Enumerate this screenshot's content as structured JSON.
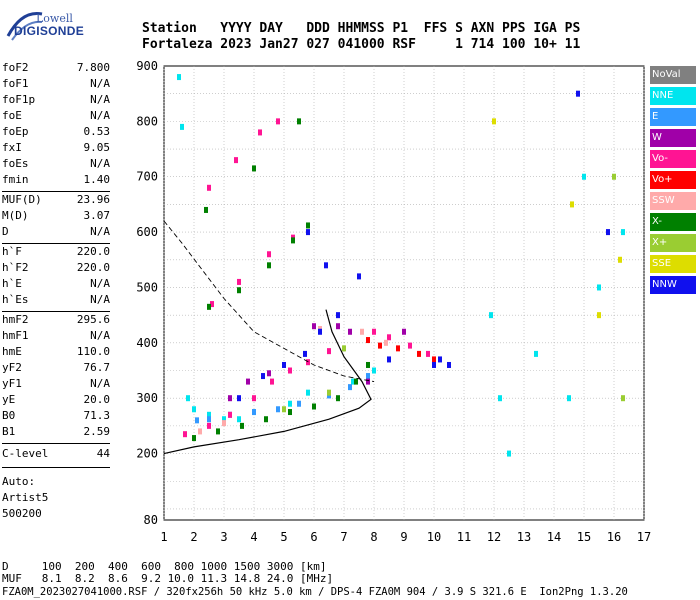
{
  "logo": {
    "line1": "Lowell",
    "line2": "DIGISONDE"
  },
  "header": {
    "line1": "Station   YYYY DAY   DDD HHMMSS P1  FFS S AXN PPS IGA PS",
    "line2": "Fortaleza 2023 Jan27 027 041000 RSF     1 714 100 10+ 11"
  },
  "params": {
    "group1": [
      {
        "k": "foF2",
        "v": "7.800"
      },
      {
        "k": "foF1",
        "v": "N/A"
      },
      {
        "k": "foF1p",
        "v": "N/A"
      },
      {
        "k": "foE",
        "v": "N/A"
      },
      {
        "k": "foEp",
        "v": "0.53"
      },
      {
        "k": "fxI",
        "v": "9.05"
      },
      {
        "k": "foEs",
        "v": "N/A"
      },
      {
        "k": "fmin",
        "v": "1.40"
      }
    ],
    "group2": [
      {
        "k": "MUF(D)",
        "v": "23.96"
      },
      {
        "k": "M(D)",
        "v": "3.07"
      },
      {
        "k": "D",
        "v": "N/A"
      }
    ],
    "group3": [
      {
        "k": "h`F",
        "v": "220.0"
      },
      {
        "k": "h`F2",
        "v": "220.0"
      },
      {
        "k": "h`E",
        "v": "N/A"
      },
      {
        "k": "h`Es",
        "v": "N/A"
      }
    ],
    "group4": [
      {
        "k": "hmF2",
        "v": "295.6"
      },
      {
        "k": "hmF1",
        "v": "N/A"
      },
      {
        "k": "hmE",
        "v": "110.0"
      },
      {
        "k": "yF2",
        "v": "76.7"
      },
      {
        "k": "yF1",
        "v": "N/A"
      },
      {
        "k": "yE",
        "v": "20.0"
      },
      {
        "k": "B0",
        "v": "71.3"
      },
      {
        "k": "B1",
        "v": "2.59"
      }
    ],
    "clevel": {
      "k": "C-level",
      "v": "44"
    },
    "auto": [
      "Auto:",
      "Artist5",
      "500200"
    ]
  },
  "footer": {
    "line1": "D     100  200  400  600  800 1000 1500 3000 [km]",
    "line2": "MUF   8.1  8.2  8.6  9.2 10.0 11.3 14.8 24.0 [MHz]",
    "line3": "FZA0M_2023027041000.RSF / 320fx256h 50 kHz 5.0 km / DPS-4 FZA0M 904 / 3.9 S 321.6 E  Ion2Png 1.3.20"
  },
  "legend": [
    {
      "label": "NoVal",
      "color": "#808080"
    },
    {
      "label": "NNE",
      "color": "#00e5ee"
    },
    {
      "label": "E",
      "color": "#3399ff"
    },
    {
      "label": "W",
      "color": "#a000a8"
    },
    {
      "label": "Vo-",
      "color": "#ff1493"
    },
    {
      "label": "Vo+",
      "color": "#ff0000"
    },
    {
      "label": "SSW",
      "color": "#ffaaaa"
    },
    {
      "label": "X-",
      "color": "#008000"
    },
    {
      "label": "X+",
      "color": "#9acd32"
    },
    {
      "label": "SSE",
      "color": "#dddd00"
    },
    {
      "label": "NNW",
      "color": "#1010ee"
    }
  ],
  "chart_data": {
    "type": "scatter",
    "xlabel": "",
    "ylabel": "",
    "xlim": [
      1,
      17
    ],
    "ylim": [
      80,
      900
    ],
    "x_ticks": [
      "1",
      "2",
      "3",
      "4",
      "5",
      "6",
      "7",
      "8",
      "9",
      "10",
      "11",
      "12",
      "13",
      "14",
      "15",
      "16",
      "17"
    ],
    "y_ticks": [
      "80",
      "200",
      "300",
      "400",
      "500",
      "600",
      "700",
      "800",
      "900"
    ],
    "grid": true,
    "series": [
      {
        "name": "NNE",
        "points": [
          [
            1.5,
            880
          ],
          [
            1.6,
            790
          ],
          [
            1.8,
            300
          ],
          [
            2.0,
            280
          ],
          [
            2.5,
            270
          ],
          [
            3.0,
            262
          ],
          [
            3.5,
            262
          ],
          [
            4.0,
            275
          ],
          [
            5.2,
            290
          ],
          [
            5.8,
            310
          ],
          [
            7.3,
            330
          ],
          [
            8.0,
            350
          ],
          [
            11.9,
            450
          ],
          [
            12.2,
            300
          ],
          [
            12.5,
            200
          ],
          [
            13.4,
            380
          ],
          [
            14.5,
            300
          ],
          [
            15.0,
            700
          ],
          [
            15.5,
            500
          ],
          [
            16.3,
            600
          ]
        ]
      },
      {
        "name": "E",
        "points": [
          [
            2.1,
            260
          ],
          [
            2.5,
            262
          ],
          [
            3.2,
            270
          ],
          [
            4.0,
            275
          ],
          [
            4.8,
            280
          ],
          [
            5.5,
            290
          ],
          [
            6.5,
            305
          ],
          [
            7.2,
            320
          ],
          [
            7.8,
            340
          ]
        ]
      },
      {
        "name": "W",
        "points": [
          [
            3.2,
            300
          ],
          [
            3.8,
            330
          ],
          [
            4.5,
            345
          ],
          [
            6.0,
            430
          ],
          [
            6.8,
            430
          ],
          [
            7.2,
            420
          ],
          [
            7.8,
            330
          ],
          [
            9.0,
            420
          ]
        ]
      },
      {
        "name": "Vo-",
        "points": [
          [
            1.7,
            235
          ],
          [
            2.5,
            250
          ],
          [
            3.2,
            270
          ],
          [
            4.0,
            300
          ],
          [
            4.6,
            330
          ],
          [
            5.2,
            350
          ],
          [
            5.8,
            365
          ],
          [
            6.5,
            385
          ],
          [
            8.0,
            420
          ],
          [
            8.5,
            410
          ],
          [
            9.2,
            395
          ],
          [
            9.8,
            380
          ],
          [
            2.6,
            470
          ],
          [
            3.5,
            510
          ],
          [
            4.5,
            560
          ],
          [
            5.3,
            590
          ],
          [
            2.5,
            680
          ],
          [
            3.4,
            730
          ],
          [
            4.2,
            780
          ],
          [
            4.8,
            800
          ]
        ]
      },
      {
        "name": "Vo+",
        "points": [
          [
            7.8,
            405
          ],
          [
            8.2,
            395
          ],
          [
            8.8,
            390
          ],
          [
            9.5,
            380
          ],
          [
            10.0,
            370
          ]
        ]
      },
      {
        "name": "SSW",
        "points": [
          [
            2.2,
            240
          ],
          [
            3.0,
            255
          ],
          [
            6.2,
            425
          ],
          [
            7.6,
            420
          ],
          [
            8.4,
            400
          ]
        ]
      },
      {
        "name": "X-",
        "points": [
          [
            2.0,
            228
          ],
          [
            2.8,
            240
          ],
          [
            3.6,
            250
          ],
          [
            4.4,
            262
          ],
          [
            5.2,
            275
          ],
          [
            6.0,
            285
          ],
          [
            6.8,
            300
          ],
          [
            7.4,
            330
          ],
          [
            7.8,
            360
          ],
          [
            2.5,
            465
          ],
          [
            3.5,
            495
          ],
          [
            4.5,
            540
          ],
          [
            5.3,
            585
          ],
          [
            5.8,
            612
          ],
          [
            2.4,
            640
          ],
          [
            4.0,
            715
          ],
          [
            5.5,
            800
          ]
        ]
      },
      {
        "name": "X+",
        "points": [
          [
            5.0,
            280
          ],
          [
            6.5,
            310
          ],
          [
            7.0,
            390
          ],
          [
            16.0,
            700
          ],
          [
            16.3,
            300
          ]
        ]
      },
      {
        "name": "SSE",
        "points": [
          [
            12.0,
            800
          ],
          [
            14.6,
            650
          ],
          [
            15.5,
            450
          ],
          [
            16.2,
            550
          ]
        ]
      },
      {
        "name": "NNW",
        "points": [
          [
            3.5,
            300
          ],
          [
            4.3,
            340
          ],
          [
            5.0,
            360
          ],
          [
            5.7,
            380
          ],
          [
            6.2,
            420
          ],
          [
            6.8,
            450
          ],
          [
            7.5,
            520
          ],
          [
            8.5,
            370
          ],
          [
            10.0,
            360
          ],
          [
            10.2,
            370
          ],
          [
            10.5,
            360
          ],
          [
            5.8,
            600
          ],
          [
            6.4,
            540
          ],
          [
            14.8,
            850
          ],
          [
            15.8,
            600
          ]
        ]
      }
    ],
    "lines": [
      {
        "name": "profile",
        "points": [
          [
            1.0,
            200
          ],
          [
            2.0,
            212
          ],
          [
            3.5,
            225
          ],
          [
            5.0,
            240
          ],
          [
            6.5,
            262
          ],
          [
            7.5,
            282
          ],
          [
            7.9,
            298
          ],
          [
            7.6,
            330
          ],
          [
            7.0,
            375
          ],
          [
            6.6,
            420
          ],
          [
            6.4,
            460
          ]
        ]
      },
      {
        "name": "muf_dashed",
        "points": [
          [
            1.0,
            620
          ],
          [
            1.6,
            580
          ],
          [
            2.3,
            530
          ],
          [
            3.0,
            480
          ],
          [
            4.0,
            420
          ],
          [
            5.0,
            390
          ],
          [
            6.0,
            360
          ],
          [
            7.0,
            340
          ],
          [
            8.0,
            330
          ]
        ]
      }
    ]
  }
}
